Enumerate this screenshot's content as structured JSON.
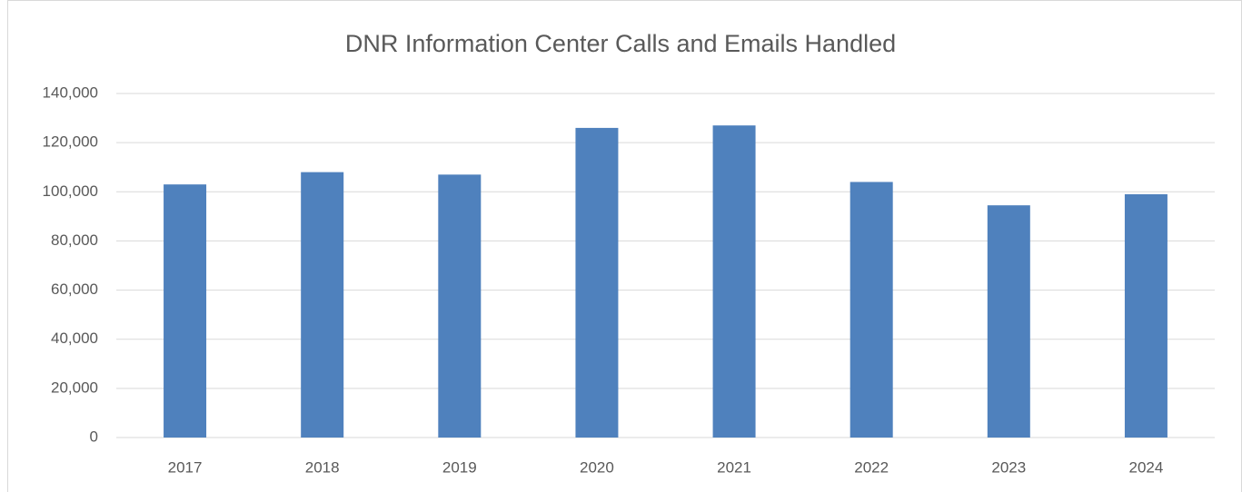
{
  "chart_data": {
    "type": "bar",
    "title": "DNR Information Center Calls and Emails Handled",
    "categories": [
      "2017",
      "2018",
      "2019",
      "2020",
      "2021",
      "2022",
      "2023",
      "2024"
    ],
    "values": [
      103000,
      108000,
      107000,
      126000,
      127000,
      104000,
      94500,
      99000
    ],
    "color": "#4f81bd",
    "ylim": [
      0,
      140000
    ],
    "yticks": [
      0,
      {
        "value": 20000,
        "label": "20,000"
      },
      {
        "value": 40000,
        "label": "40,000"
      },
      {
        "value": 60000,
        "label": "60,000"
      },
      {
        "value": 80000,
        "label": "80,000"
      },
      {
        "value": 100000,
        "label": "100,000"
      },
      {
        "value": 120000,
        "label": "120,000"
      },
      {
        "value": 140000,
        "label": "140,000"
      }
    ],
    "grid": true
  }
}
